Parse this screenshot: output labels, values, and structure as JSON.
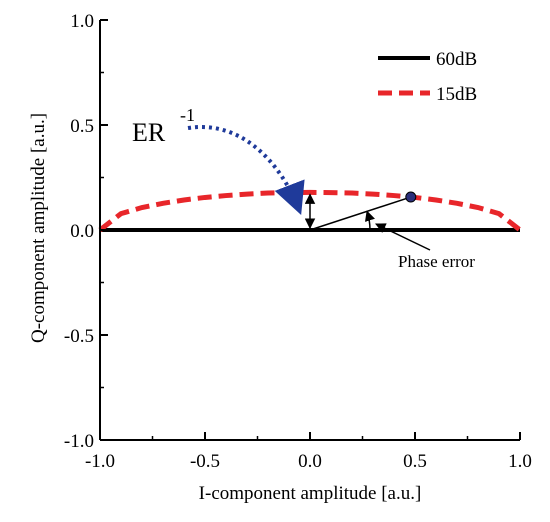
{
  "chart_data": {
    "type": "line",
    "xlabel": "I-component amplitude [a.u.]",
    "ylabel": "Q-component amplitude [a.u.]",
    "xlim": [
      -1.0,
      1.0
    ],
    "ylim": [
      -1.0,
      1.0
    ],
    "x_ticks": [
      "-1.0",
      "-0.5",
      "0.0",
      "0.5",
      "1.0"
    ],
    "y_ticks": [
      "-1.0",
      "-0.5",
      "0.0",
      "0.5",
      "1.0"
    ],
    "grid": false,
    "legend_position": "top-right",
    "series": [
      {
        "name": "60dB",
        "style": "solid",
        "color": "#000000",
        "x": [
          -1.0,
          -0.5,
          0.0,
          0.5,
          1.0
        ],
        "y": [
          0.0,
          0.0,
          0.0,
          0.0,
          0.0
        ]
      },
      {
        "name": "15dB",
        "style": "dashed",
        "color": "#e8262a",
        "x": [
          -1.0,
          -0.9,
          -0.8,
          -0.7,
          -0.6,
          -0.5,
          -0.4,
          -0.3,
          -0.2,
          -0.1,
          0.0,
          0.1,
          0.2,
          0.3,
          0.4,
          0.5,
          0.6,
          0.7,
          0.8,
          0.9,
          1.0
        ],
        "y": [
          0.0,
          0.078,
          0.107,
          0.127,
          0.143,
          0.155,
          0.164,
          0.171,
          0.176,
          0.178,
          0.179,
          0.178,
          0.176,
          0.171,
          0.164,
          0.155,
          0.143,
          0.127,
          0.107,
          0.078,
          0.0
        ]
      }
    ],
    "marker_point": {
      "x": 0.48,
      "y": 0.157,
      "color": "#2b2f7a"
    },
    "annotations": {
      "er_label": "ER",
      "er_superscript": "-1",
      "phase_error_label": "Phase error"
    }
  }
}
